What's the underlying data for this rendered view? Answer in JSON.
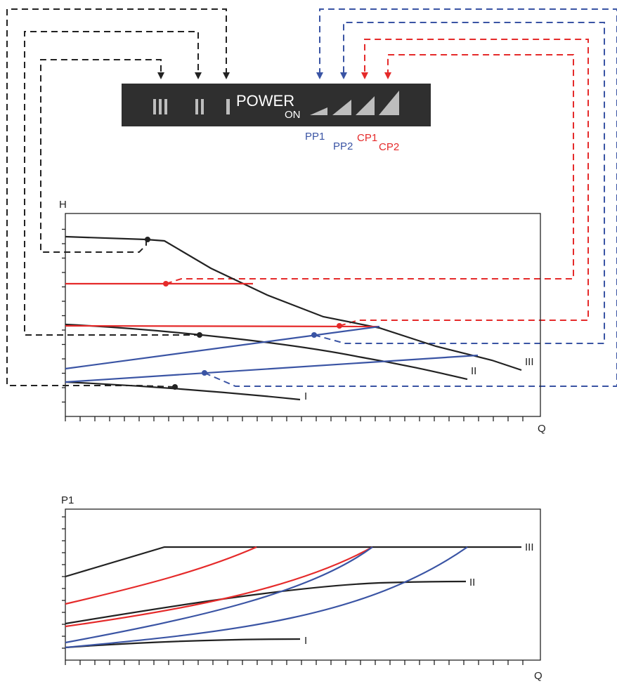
{
  "control_panel": {
    "power_label": "POWER",
    "on_label": "ON",
    "speed_marks": [
      "III",
      "II",
      "I"
    ],
    "mode_labels": {
      "pp1": "PP1",
      "pp2": "PP2",
      "cp1": "CP1",
      "cp2": "CP2"
    }
  },
  "colors": {
    "constant_speed": "#222222",
    "proportional_pressure": "#3a54a4",
    "constant_pressure": "#e52a2a",
    "panel": "#2f2f2f"
  },
  "head_chart": {
    "y_axis_label": "H",
    "x_axis_label": "Q",
    "curve_labels": {
      "speed_3": "III",
      "speed_2": "II",
      "speed_1": "I"
    }
  },
  "power_chart": {
    "y_axis_label": "P1",
    "x_axis_label": "Q",
    "curve_labels": {
      "speed_3": "III",
      "speed_2": "II",
      "speed_1": "I"
    }
  }
}
